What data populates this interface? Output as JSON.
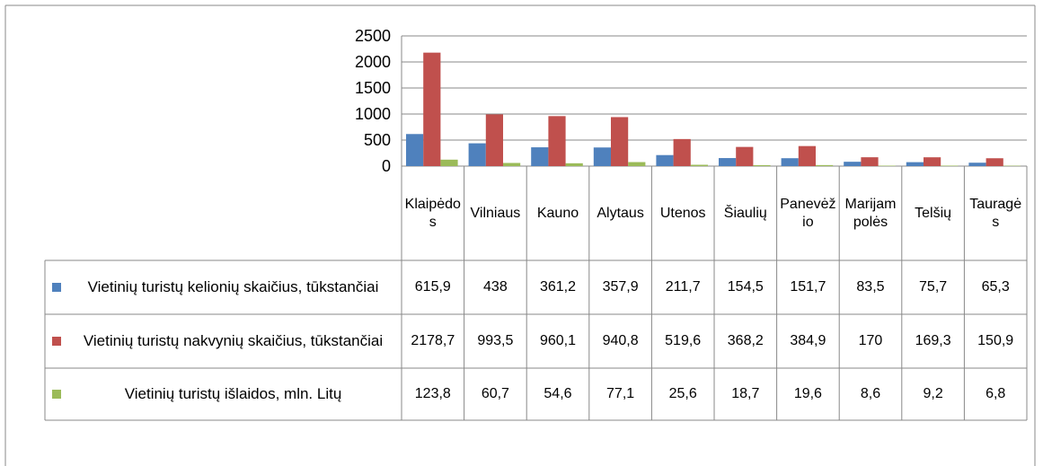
{
  "chart_data": {
    "type": "bar",
    "categories": [
      "Klaipėdos",
      "Vilniaus",
      "Kauno",
      "Alytaus",
      "Utenos",
      "Šiaulių",
      "Panevėžio",
      "Marijampolės",
      "Telšių",
      "Tauragės"
    ],
    "series": [
      {
        "name": "Vietinių turistų kelionių skaičius, tūkstančiai",
        "color": "#4f81bd",
        "values": [
          615.9,
          438,
          361.2,
          357.9,
          211.7,
          154.5,
          151.7,
          83.5,
          75.7,
          65.3
        ],
        "value_labels": [
          "615,9",
          "438",
          "361,2",
          "357,9",
          "211,7",
          "154,5",
          "151,7",
          "83,5",
          "75,7",
          "65,3"
        ]
      },
      {
        "name": "Vietinių turistų nakvynių skaičius, tūkstančiai",
        "color": "#c0504d",
        "values": [
          2178.7,
          993.5,
          960.1,
          940.8,
          519.6,
          368.2,
          384.9,
          170,
          169.3,
          150.9
        ],
        "value_labels": [
          "2178,7",
          "993,5",
          "960,1",
          "940,8",
          "519,6",
          "368,2",
          "384,9",
          "170",
          "169,3",
          "150,9"
        ]
      },
      {
        "name": "Vietinių turistų išlaidos, mln. Litų",
        "color": "#9bbb59",
        "values": [
          123.8,
          60.7,
          54.6,
          77.1,
          25.6,
          18.7,
          19.6,
          8.6,
          9.2,
          6.8
        ],
        "value_labels": [
          "123,8",
          "60,7",
          "54,6",
          "77,1",
          "25,6",
          "18,7",
          "19,6",
          "8,6",
          "9,2",
          "6,8"
        ]
      }
    ],
    "ylim": [
      0,
      2500
    ],
    "yticks": [
      0,
      500,
      1000,
      1500,
      2000,
      2500
    ],
    "grid": true
  }
}
